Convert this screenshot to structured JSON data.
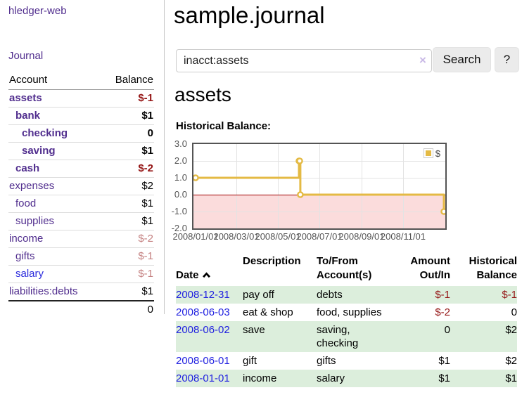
{
  "app": {
    "brand": "hledger-web",
    "nav_journal": "Journal"
  },
  "sidebar_accounts": {
    "headers": {
      "account": "Account",
      "balance": "Balance"
    },
    "rows": [
      {
        "name": "assets",
        "balance": "$-1",
        "indent": 1,
        "bold": true,
        "tone": "neg-strong",
        "link_style": "purple"
      },
      {
        "name": "bank",
        "balance": "$1",
        "indent": 2,
        "bold": true,
        "tone": "pos",
        "link_style": "purple"
      },
      {
        "name": "checking",
        "balance": "0",
        "indent": 3,
        "bold": true,
        "tone": "pos",
        "link_style": "purple"
      },
      {
        "name": "saving",
        "balance": "$1",
        "indent": 3,
        "bold": true,
        "tone": "pos",
        "link_style": "purple"
      },
      {
        "name": "cash",
        "balance": "$-2",
        "indent": 2,
        "bold": true,
        "tone": "neg-strong",
        "link_style": "purple"
      },
      {
        "name": "expenses",
        "balance": "$2",
        "indent": 1,
        "bold": false,
        "tone": "pos",
        "link_style": "purple"
      },
      {
        "name": "food",
        "balance": "$1",
        "indent": 2,
        "bold": false,
        "tone": "pos",
        "link_style": "purple"
      },
      {
        "name": "supplies",
        "balance": "$1",
        "indent": 2,
        "bold": false,
        "tone": "pos",
        "link_style": "purple"
      },
      {
        "name": "income",
        "balance": "$-2",
        "indent": 1,
        "bold": false,
        "tone": "neg-soft",
        "link_style": "purple"
      },
      {
        "name": "gifts",
        "balance": "$-1",
        "indent": 2,
        "bold": false,
        "tone": "neg-soft",
        "link_style": "purple"
      },
      {
        "name": "salary",
        "balance": "$-1",
        "indent": 2,
        "bold": false,
        "tone": "neg-soft",
        "link_style": "blue"
      },
      {
        "name": "liabilities:debts",
        "balance": "$1",
        "indent": 1,
        "bold": false,
        "tone": "pos",
        "link_style": "purple"
      }
    ],
    "total": "0"
  },
  "main": {
    "title": "sample.journal",
    "search": {
      "value": "inacct:assets",
      "clear_icon": "×",
      "search_label": "Search",
      "help_label": "?"
    },
    "account_heading": "assets",
    "chart_heading": "Historical Balance:"
  },
  "chart_data": {
    "type": "line",
    "line_style": "step",
    "title": "Historical Balance",
    "series": [
      {
        "name": "$",
        "color": "#e4ba44",
        "points": [
          [
            "2008-01-01",
            1
          ],
          [
            "2008-06-01",
            2
          ],
          [
            "2008-06-02",
            2
          ],
          [
            "2008-06-03",
            0
          ],
          [
            "2008-12-31",
            -1
          ]
        ]
      }
    ],
    "x_tick_labels": [
      "2008/01/01",
      "2008/03/01",
      "2008/05/01",
      "2008/07/01",
      "2008/09/01",
      "2008/11/01"
    ],
    "y_tick_labels": [
      "3.0",
      "2.0",
      "1.0",
      "0.0",
      "-1.0",
      "-2.0"
    ],
    "x_range": [
      "2008-01-01",
      "2008-12-31"
    ],
    "y_range": [
      -2,
      3
    ],
    "grid": true,
    "legend_position": "top-right",
    "legend_label": "$",
    "negative_region_shaded": true
  },
  "register": {
    "headers": {
      "date": "Date",
      "description": "Description",
      "accounts": "To/From\nAccount(s)",
      "amount": "Amount\nOut/In",
      "balance": "Historical\nBalance"
    },
    "rows": [
      {
        "date": "2008-12-31",
        "description": "pay off",
        "accounts": "debts",
        "amount": "$-1",
        "amount_tone": "neg",
        "balance": "$-1",
        "balance_tone": "neg",
        "green": true
      },
      {
        "date": "2008-06-03",
        "description": "eat & shop",
        "accounts": "food, supplies",
        "amount": "$-2",
        "amount_tone": "neg",
        "balance": "0",
        "balance_tone": "pos",
        "green": false
      },
      {
        "date": "2008-06-02",
        "description": "save",
        "accounts": "saving,\nchecking",
        "amount": "0",
        "amount_tone": "pos",
        "balance": "$2",
        "balance_tone": "pos",
        "green": true
      },
      {
        "date": "2008-06-01",
        "description": "gift",
        "accounts": "gifts",
        "amount": "$1",
        "amount_tone": "pos",
        "balance": "$2",
        "balance_tone": "pos",
        "green": false
      },
      {
        "date": "2008-01-01",
        "description": "income",
        "accounts": "salary",
        "amount": "$1",
        "amount_tone": "pos",
        "balance": "$1",
        "balance_tone": "pos",
        "green": true
      }
    ]
  },
  "colors": {
    "link_purple": "#512e8e",
    "link_blue": "#2b2bdd",
    "date_link_blue": "#1f1fe0",
    "negative_strong": "#941414",
    "negative_soft": "#c48080",
    "row_green": "#dceedc",
    "chart_line": "#e4ba44",
    "chart_grid": "#e3e3e3",
    "chart_negative_region": "#fbdcdc",
    "chart_zero_line": "#a00000"
  }
}
